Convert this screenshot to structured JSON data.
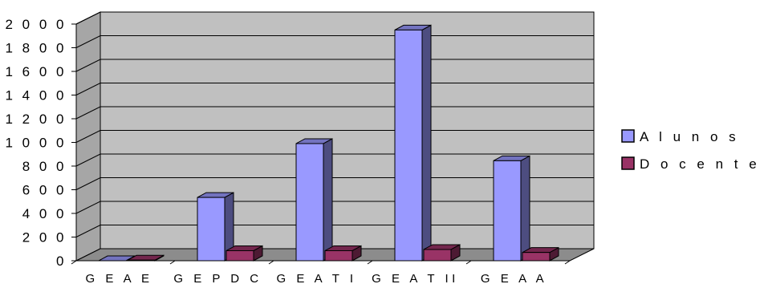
{
  "chart_data": {
    "type": "bar",
    "categories": [
      "G E A E",
      "G E P D C",
      "G E A T  I",
      "G E A T  II",
      "G E A A"
    ],
    "series": [
      {
        "name": "A l u n o s",
        "values": [
          0,
          535,
          990,
          1950,
          845
        ],
        "color": "#9999ff"
      },
      {
        "name": "D o c e n t e s",
        "values": [
          5,
          85,
          85,
          95,
          70
        ],
        "color": "#993366"
      }
    ],
    "ylim": [
      0,
      2000
    ],
    "yticks": [
      "0",
      "2 0 0",
      "4 0 0",
      "6 0 0",
      "8 0 0",
      "1 0 0 0",
      "1 2 0 0",
      "1 4 0 0",
      "1 6 0 0",
      "1 8 0 0",
      "2 0 0 0"
    ],
    "ytick_values": [
      0,
      200,
      400,
      600,
      800,
      1000,
      1200,
      1400,
      1600,
      1800,
      2000
    ],
    "grid": true,
    "three_d": true,
    "legend_position": "right",
    "plot_background": "#c0c0c0"
  }
}
